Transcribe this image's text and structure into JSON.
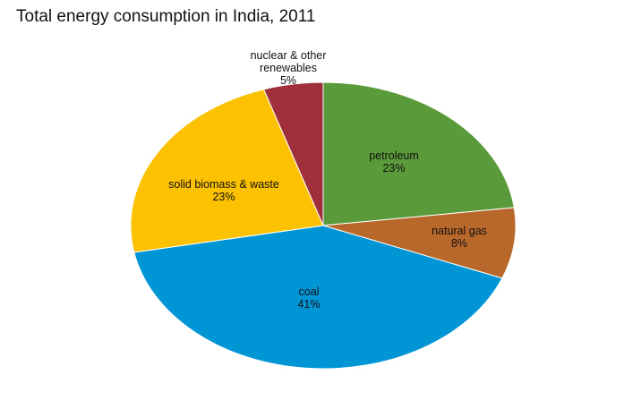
{
  "chart_data": {
    "type": "pie",
    "title": "Total energy consumption in India, 2011",
    "start_angle_deg": 0,
    "direction": "clockwise",
    "slices": [
      {
        "label": "petroleum",
        "label_lines": [
          "petroleum"
        ],
        "value": 23,
        "value_label": "23%",
        "color": "#5b9a3a"
      },
      {
        "label": "natural gas",
        "label_lines": [
          "natural gas"
        ],
        "value": 8,
        "value_label": "8%",
        "color": "#b8682a"
      },
      {
        "label": "coal",
        "label_lines": [
          "coal"
        ],
        "value": 41,
        "value_label": "41%",
        "color": "#0096d6"
      },
      {
        "label": "solid biomass & waste",
        "label_lines": [
          "solid biomass & waste"
        ],
        "value": 23,
        "value_label": "23%",
        "color": "#fcc100"
      },
      {
        "label": "nuclear & other renewables",
        "label_lines": [
          "nuclear & other",
          "renewables"
        ],
        "value": 5,
        "value_label": "5%",
        "color": "#a02f3c"
      }
    ]
  }
}
